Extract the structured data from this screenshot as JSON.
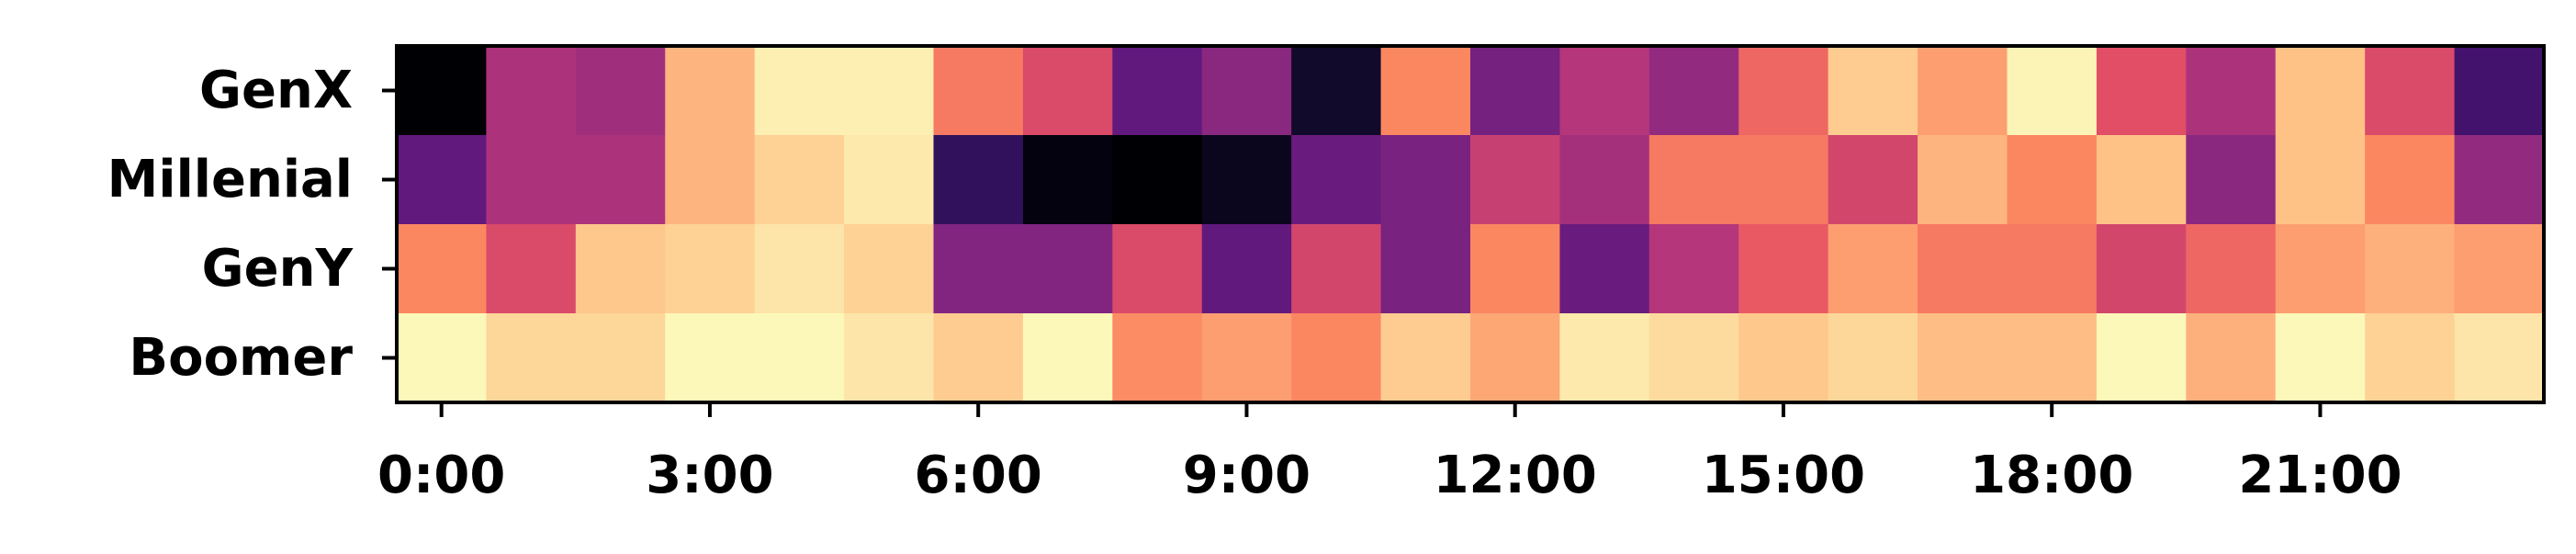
{
  "chart_data": {
    "type": "heatmap",
    "colormap": "magma",
    "value_range": [
      0,
      1
    ],
    "grid": false,
    "legend": "none",
    "title": "",
    "xlabel": "",
    "ylabel": "",
    "rows": [
      "GenX",
      "Millenial",
      "GenY",
      "Boomer"
    ],
    "x_tick_labels": [
      {
        "hour": 0,
        "label": "0:00"
      },
      {
        "hour": 3,
        "label": "3:00"
      },
      {
        "hour": 6,
        "label": "6:00"
      },
      {
        "hour": 9,
        "label": "9:00"
      },
      {
        "hour": 12,
        "label": "12:00"
      },
      {
        "hour": 15,
        "label": "15:00"
      },
      {
        "hour": 18,
        "label": "18:00"
      },
      {
        "hour": 21,
        "label": "21:00"
      }
    ],
    "x_range": [
      0,
      23
    ],
    "values": [
      [
        0.0,
        0.48,
        0.45,
        0.85,
        0.97,
        0.97,
        0.72,
        0.6,
        0.3,
        0.4,
        0.08,
        0.75,
        0.35,
        0.5,
        0.42,
        0.68,
        0.9,
        0.8,
        0.98,
        0.62,
        0.48,
        0.88,
        0.6,
        0.22
      ],
      [
        0.3,
        0.48,
        0.48,
        0.85,
        0.91,
        0.96,
        0.18,
        0.02,
        0.0,
        0.05,
        0.32,
        0.36,
        0.55,
        0.46,
        0.72,
        0.72,
        0.58,
        0.85,
        0.75,
        0.88,
        0.4,
        0.88,
        0.75,
        0.42
      ],
      [
        0.75,
        0.6,
        0.89,
        0.91,
        0.95,
        0.91,
        0.38,
        0.38,
        0.6,
        0.3,
        0.58,
        0.36,
        0.75,
        0.32,
        0.5,
        0.65,
        0.8,
        0.72,
        0.72,
        0.58,
        0.68,
        0.8,
        0.84,
        0.8
      ]
    ],
    "values_row4": [
      0.99,
      0.92,
      0.92,
      0.99,
      0.99,
      0.95,
      0.9,
      0.99,
      0.76,
      0.8,
      0.75,
      0.9,
      0.82,
      0.96,
      0.93,
      0.89,
      0.92,
      0.87,
      0.87,
      0.99,
      0.84,
      0.99,
      0.91,
      0.95
    ]
  }
}
